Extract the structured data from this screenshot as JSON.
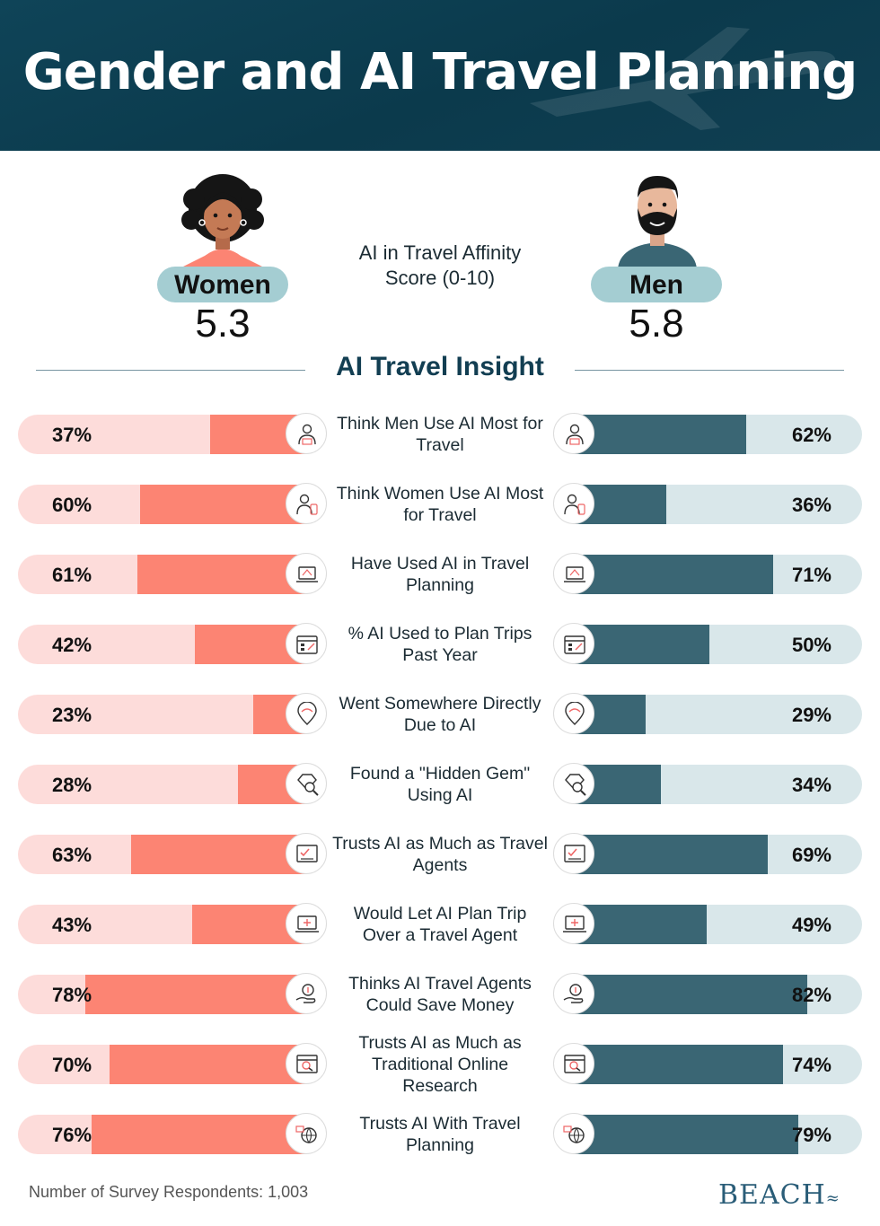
{
  "title": "Gender and AI Travel Planning",
  "women": {
    "label": "Women",
    "score": "5.3"
  },
  "men": {
    "label": "Men",
    "score": "5.8"
  },
  "affinity_label": "AI in Travel Affinity Score (0-10)",
  "insight_title": "AI Travel Insight",
  "footer": "Number of Survey Respondents: 1,003",
  "logo": "BEACH",
  "colors": {
    "women": "#fc8473",
    "women_track": "#fddcda",
    "men": "#3a6674",
    "men_track": "#d9e7ea",
    "header": "#0b3a4c",
    "pill": "#a4cdd2"
  },
  "chart_data": {
    "type": "bar",
    "title": "AI Travel Insight",
    "ylim": [
      0,
      100
    ],
    "categories": [
      "Think Men Use AI Most for Travel",
      "Think Women Use AI Most for Travel",
      "Have Used AI in Travel Planning",
      "% AI Used to Plan Trips Past Year",
      "Went Somewhere Directly Due to AI",
      "Found a \"Hidden Gem\" Using AI",
      "Trusts AI as Much as Travel Agents",
      "Would Let AI Plan Trip Over a Travel Agent",
      "Thinks AI Travel Agents Could Save Money",
      "Trusts AI as Much as Traditional Online Research",
      "Trusts AI With Travel Planning"
    ],
    "series": [
      {
        "name": "Women",
        "values": [
          37,
          60,
          61,
          42,
          23,
          28,
          63,
          43,
          78,
          70,
          76
        ]
      },
      {
        "name": "Men",
        "values": [
          62,
          36,
          71,
          50,
          29,
          34,
          69,
          49,
          82,
          74,
          79
        ]
      }
    ],
    "icons": [
      "man-traveler-icon",
      "woman-traveler-icon",
      "laptop-plan-icon",
      "calendar-plane-icon",
      "location-pin-icon",
      "gem-search-icon",
      "checklist-icon",
      "laptop-plane-icon",
      "money-hand-icon",
      "browser-search-icon",
      "globe-devices-icon"
    ]
  }
}
